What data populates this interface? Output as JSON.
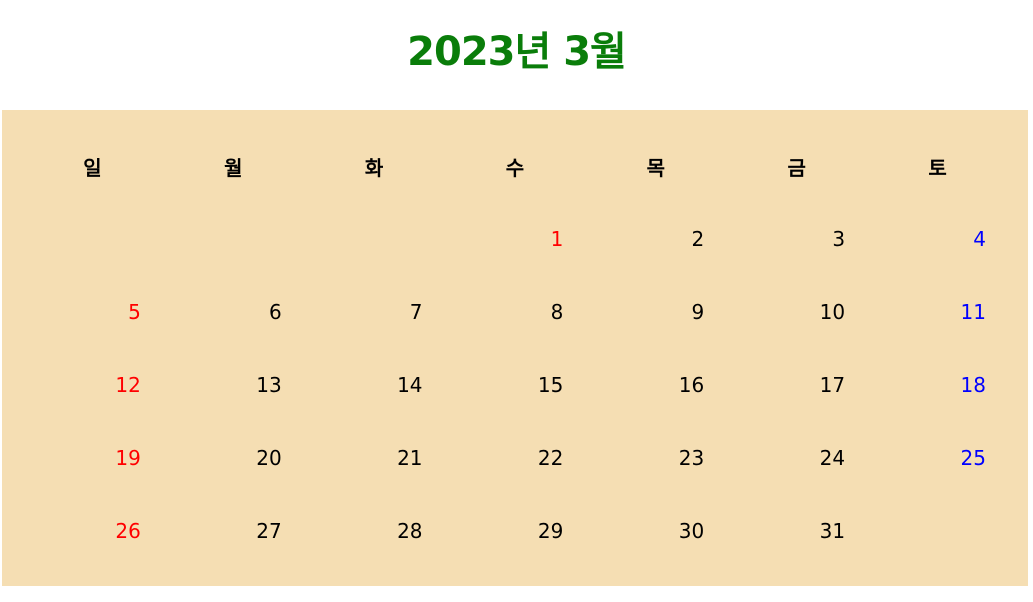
{
  "title": "2023년 3월",
  "weekdays": [
    "일",
    "월",
    "화",
    "수",
    "목",
    "금",
    "토"
  ],
  "weeks": [
    [
      "",
      "",
      "",
      "1",
      "2",
      "3",
      "4"
    ],
    [
      "5",
      "6",
      "7",
      "8",
      "9",
      "10",
      "11"
    ],
    [
      "12",
      "13",
      "14",
      "15",
      "16",
      "17",
      "18"
    ],
    [
      "19",
      "20",
      "21",
      "22",
      "23",
      "24",
      "25"
    ],
    [
      "26",
      "27",
      "28",
      "29",
      "30",
      "31",
      ""
    ]
  ],
  "colors": {
    "title": "#0a7d0a",
    "background": "#f5deb3",
    "sunday": "#ff0000",
    "saturday": "#0000ff",
    "weekday": "#000000"
  }
}
